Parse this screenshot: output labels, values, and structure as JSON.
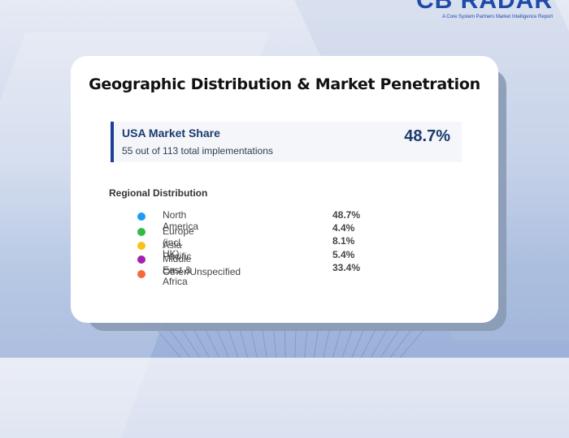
{
  "brand": {
    "name": "CB RADAR",
    "subtitle": "A Core System Partners Market Intelligence Report"
  },
  "card": {
    "title": "Geographic Distribution & Market Penetration",
    "usa_market_share": {
      "label": "USA Market Share",
      "detail": "55 out of 113 total implementations",
      "value": "48.7%"
    },
    "regional": {
      "heading": "Regional Distribution",
      "items": [
        {
          "name": "North America",
          "value": "48.7%",
          "color": "#1e9bf0"
        },
        {
          "name": "Europe (incl. UK)",
          "value": "4.4%",
          "color": "#34b84a"
        },
        {
          "name": "Asia Pacific",
          "value": "8.1%",
          "color": "#f9c21a"
        },
        {
          "name": "Middle East & Africa",
          "value": "5.4%",
          "color": "#a51fb0"
        },
        {
          "name": "Other/Unspecified",
          "value": "33.4%",
          "color": "#f36b3d"
        }
      ]
    }
  },
  "colors": {
    "accent": "#1c3f95",
    "brand": "#1f4aa8"
  }
}
